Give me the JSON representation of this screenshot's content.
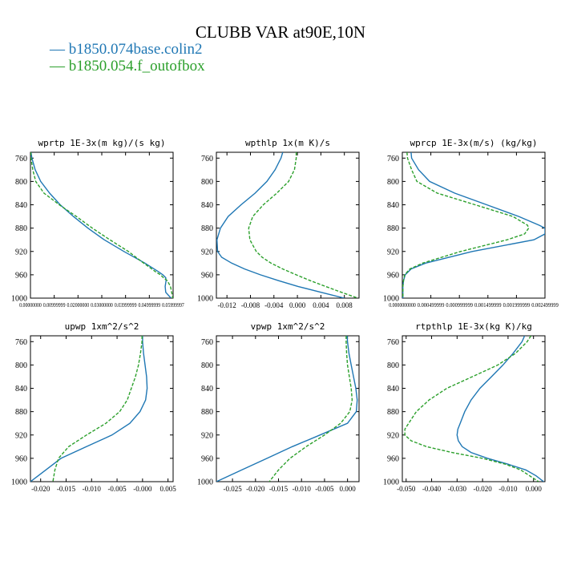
{
  "figure": {
    "title": "CLUBB VAR at90E,10N",
    "legend": [
      {
        "label": "b1850.074base.colin2",
        "color": "#1f77b4"
      },
      {
        "label": "b1850.054.f_outofbox",
        "color": "#2ca02c"
      }
    ]
  },
  "chart_data": [
    {
      "type": "line",
      "title": "wprtp  1E-3x(m kg)/(s kg)",
      "xlim": [
        0,
        0.0485
      ],
      "ylim": [
        1000,
        750
      ],
      "y_ticks": [
        760,
        800,
        840,
        880,
        920,
        960,
        1000
      ],
      "x_tick_labels": [
        "0.00000000",
        "0.00999999",
        "0.02000000",
        "0.03000000",
        "0.03999999",
        "0.04999999",
        "0.05999997"
      ],
      "y": [
        750,
        760,
        780,
        800,
        820,
        840,
        860,
        880,
        900,
        920,
        940,
        955,
        960,
        965,
        970,
        980,
        990,
        1000
      ],
      "series": [
        {
          "name": "b1850.074base.colin2",
          "values": [
            0.0002,
            0.0005,
            0.0016,
            0.0035,
            0.0065,
            0.0101,
            0.0146,
            0.0195,
            0.0251,
            0.0318,
            0.0389,
            0.0436,
            0.045,
            0.046,
            0.0461,
            0.0458,
            0.046,
            0.0478
          ]
        },
        {
          "name": "b1850.054.f_outofbox",
          "values": [
            0.0001,
            0.0002,
            0.0008,
            0.0018,
            0.0046,
            0.0098,
            0.0156,
            0.021,
            0.027,
            0.0333,
            0.0385,
            0.0426,
            0.0442,
            0.0452,
            0.0465,
            0.0476,
            0.048,
            0.0484
          ]
        }
      ]
    },
    {
      "type": "line",
      "title": "wpthlp  1x(m K)/s",
      "xlim": [
        -0.0138,
        0.0105
      ],
      "ylim": [
        1000,
        750
      ],
      "y_ticks": [
        760,
        800,
        840,
        880,
        920,
        960,
        1000
      ],
      "x_ticks": [
        -0.012,
        -0.008,
        -0.004,
        0.0,
        0.004,
        0.008
      ],
      "x_tick_labels": [
        "-0.012",
        "-0.008",
        "-0.004",
        "0.000",
        "0.004",
        "0.008"
      ],
      "y": [
        750,
        760,
        780,
        800,
        820,
        840,
        860,
        880,
        900,
        920,
        930,
        940,
        950,
        960,
        970,
        980,
        990,
        1000
      ],
      "series": [
        {
          "name": "b1850.074base.colin2",
          "values": [
            -0.0025,
            -0.0028,
            -0.0038,
            -0.0052,
            -0.0072,
            -0.0096,
            -0.0118,
            -0.0131,
            -0.0137,
            -0.0136,
            -0.0129,
            -0.0112,
            -0.009,
            -0.0063,
            -0.0032,
            0.0001,
            0.004,
            0.008
          ]
        },
        {
          "name": "b1850.054.f_outofbox",
          "values": [
            -0.0002,
            -0.0002,
            -0.0005,
            -0.0015,
            -0.0035,
            -0.0058,
            -0.0076,
            -0.0083,
            -0.0081,
            -0.007,
            -0.006,
            -0.0045,
            -0.0025,
            -0.0002,
            0.0022,
            0.0048,
            0.0075,
            0.0103
          ]
        }
      ]
    },
    {
      "type": "line",
      "title": "wprcp  1E-3x(m/s) (kg/kg)",
      "xlim": [
        0,
        0.00245
      ],
      "ylim": [
        1000,
        750
      ],
      "y_ticks": [
        760,
        800,
        840,
        880,
        920,
        960,
        1000
      ],
      "x_tick_labels": [
        "0.0000000000",
        "0.000499999",
        "0.000999999",
        "0.001499999",
        "0.001999999",
        "0.002499999"
      ],
      "y": [
        750,
        760,
        780,
        800,
        820,
        840,
        860,
        875,
        880,
        890,
        900,
        920,
        940,
        950,
        960,
        970,
        980,
        1000
      ],
      "series": [
        {
          "name": "b1850.074base.colin2",
          "values": [
            0.00015,
            0.00016,
            0.00028,
            0.00047,
            0.0009,
            0.00145,
            0.002,
            0.00235,
            0.00245,
            0.00245,
            0.00226,
            0.0012,
            0.0004,
            0.00015,
            5e-05,
            2e-05,
            1e-05,
            1e-05
          ]
        },
        {
          "name": "b1850.054.f_outofbox",
          "values": [
            8e-05,
            9e-05,
            0.00016,
            0.00025,
            0.0006,
            0.00125,
            0.0019,
            0.00215,
            0.00217,
            0.0021,
            0.0018,
            0.001,
            0.00035,
            0.00013,
            4e-05,
            2e-05,
            1e-05,
            1e-05
          ]
        }
      ]
    },
    {
      "type": "line",
      "title": "upwp  1xm^2/s^2",
      "xlim": [
        -0.022,
        0.006
      ],
      "ylim": [
        1000,
        750
      ],
      "y_ticks": [
        760,
        800,
        840,
        880,
        920,
        960,
        1000
      ],
      "x_ticks": [
        -0.02,
        -0.015,
        -0.01,
        -0.005,
        0.0,
        0.005
      ],
      "x_tick_labels": [
        "-0.020",
        "-0.015",
        "-0.010",
        "-0.005",
        "-0.000",
        "0.005"
      ],
      "y": [
        750,
        760,
        780,
        800,
        820,
        840,
        860,
        880,
        900,
        920,
        940,
        960,
        980,
        1000
      ],
      "series": [
        {
          "name": "b1850.074base.colin2",
          "values": [
            0.0,
            0.0,
            0.0002,
            0.0005,
            0.0008,
            0.0009,
            0.0006,
            -0.0005,
            -0.0025,
            -0.006,
            -0.011,
            -0.016,
            -0.019,
            -0.022
          ]
        },
        {
          "name": "b1850.054.f_outofbox",
          "values": [
            -0.0001,
            -0.0001,
            -0.0004,
            -0.0008,
            -0.0014,
            -0.0022,
            -0.003,
            -0.0045,
            -0.0072,
            -0.011,
            -0.0145,
            -0.0165,
            -0.0172,
            -0.0176
          ]
        }
      ]
    },
    {
      "type": "line",
      "title": "vpwp  1xm^2/s^2",
      "xlim": [
        -0.0285,
        0.0025
      ],
      "ylim": [
        1000,
        750
      ],
      "y_ticks": [
        760,
        800,
        840,
        880,
        920,
        960,
        1000
      ],
      "x_ticks": [
        -0.025,
        -0.02,
        -0.015,
        -0.01,
        -0.005,
        0.0
      ],
      "x_tick_labels": [
        "-0.025",
        "-0.020",
        "-0.015",
        "-0.010",
        "-0.005",
        "0.000"
      ],
      "y": [
        750,
        760,
        780,
        800,
        820,
        840,
        860,
        880,
        900,
        920,
        940,
        960,
        980,
        1000
      ],
      "series": [
        {
          "name": "b1850.074base.colin2",
          "values": [
            -0.0001,
            0.0,
            0.0003,
            0.0008,
            0.0013,
            0.0018,
            0.0021,
            0.0019,
            0.0,
            -0.006,
            -0.012,
            -0.0175,
            -0.023,
            -0.0285
          ]
        },
        {
          "name": "b1850.054.f_outofbox",
          "values": [
            -0.0003,
            -0.0003,
            -0.0002,
            0.0,
            0.0004,
            0.0008,
            0.001,
            0.0005,
            -0.0015,
            -0.005,
            -0.009,
            -0.0125,
            -0.015,
            -0.017
          ]
        }
      ]
    },
    {
      "type": "line",
      "title": "rtpthlp  1E-3x(kg K)/kg",
      "xlim": [
        -0.0515,
        0.0045
      ],
      "ylim": [
        1000,
        750
      ],
      "y_ticks": [
        760,
        800,
        840,
        880,
        920,
        960,
        1000
      ],
      "x_ticks": [
        -0.05,
        -0.04,
        -0.03,
        -0.02,
        -0.01,
        0.0
      ],
      "x_tick_labels": [
        "-0.050",
        "-0.040",
        "-0.030",
        "-0.020",
        "-0.010",
        "0.000"
      ],
      "y": [
        750,
        760,
        780,
        800,
        820,
        840,
        860,
        880,
        900,
        910,
        920,
        930,
        940,
        950,
        960,
        970,
        980,
        990,
        1000
      ],
      "series": [
        {
          "name": "b1850.074base.colin2",
          "values": [
            -0.0035,
            -0.0045,
            -0.008,
            -0.012,
            -0.0165,
            -0.021,
            -0.0245,
            -0.027,
            -0.0288,
            -0.0297,
            -0.03,
            -0.0295,
            -0.028,
            -0.0245,
            -0.018,
            -0.01,
            -0.003,
            0.001,
            0.004
          ]
        },
        {
          "name": "b1850.054.f_outofbox",
          "values": [
            -0.001,
            -0.0025,
            -0.007,
            -0.014,
            -0.024,
            -0.034,
            -0.041,
            -0.046,
            -0.049,
            -0.0505,
            -0.0505,
            -0.048,
            -0.042,
            -0.032,
            -0.02,
            -0.011,
            -0.005,
            -0.0015,
            0.002
          ]
        }
      ]
    }
  ]
}
